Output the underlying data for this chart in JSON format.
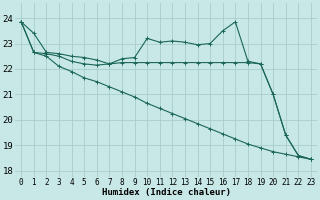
{
  "bg_color": "#c8e8e8",
  "grid_color": "#a8cccc",
  "line_color": "#1a6657",
  "xlabel": "Humidex (Indice chaleur)",
  "xlim": [
    -0.5,
    23.5
  ],
  "ylim": [
    17.75,
    24.6
  ],
  "yticks": [
    18,
    19,
    20,
    21,
    22,
    23,
    24
  ],
  "xticks": [
    0,
    1,
    2,
    3,
    4,
    5,
    6,
    7,
    8,
    9,
    10,
    11,
    12,
    13,
    14,
    15,
    16,
    17,
    18,
    19,
    20,
    21,
    22,
    23
  ],
  "series": [
    {
      "x": [
        0,
        1,
        2,
        3,
        4,
        5,
        6,
        7,
        8,
        9,
        10,
        11,
        12,
        13,
        14,
        15,
        16,
        17,
        18,
        19,
        20,
        21,
        22,
        23
      ],
      "y": [
        23.85,
        23.4,
        22.65,
        22.6,
        22.5,
        22.45,
        22.35,
        22.2,
        22.4,
        22.45,
        23.2,
        23.05,
        23.1,
        23.05,
        22.95,
        23.0,
        23.5,
        23.85,
        22.3,
        22.2,
        21.0,
        19.4,
        18.6,
        18.45
      ]
    },
    {
      "x": [
        0,
        1,
        2,
        3,
        4,
        5,
        6,
        7,
        8,
        9,
        10,
        11,
        12,
        13,
        14,
        15,
        16,
        17,
        18,
        19,
        20,
        21,
        22,
        23
      ],
      "y": [
        23.85,
        22.65,
        22.6,
        22.5,
        22.3,
        22.2,
        22.15,
        22.2,
        22.25,
        22.25,
        22.25,
        22.25,
        22.25,
        22.25,
        22.25,
        22.25,
        22.25,
        22.25,
        22.25,
        22.2,
        21.0,
        19.4,
        18.6,
        18.45
      ]
    },
    {
      "x": [
        0,
        1,
        2,
        3,
        4,
        5,
        6,
        7,
        8,
        9,
        10,
        11,
        12,
        13,
        14,
        15,
        16,
        17,
        18,
        19,
        20,
        21,
        22,
        23
      ],
      "y": [
        23.85,
        22.65,
        22.5,
        22.1,
        21.9,
        21.65,
        21.5,
        21.3,
        21.1,
        20.9,
        20.65,
        20.45,
        20.25,
        20.05,
        19.85,
        19.65,
        19.45,
        19.25,
        19.05,
        18.9,
        18.75,
        18.65,
        18.55,
        18.45
      ]
    }
  ]
}
